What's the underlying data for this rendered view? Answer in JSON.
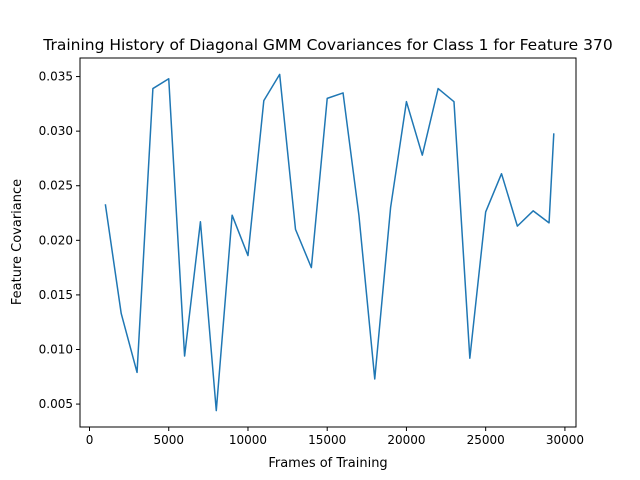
{
  "chart_data": {
    "type": "line",
    "title": "Training History of Diagonal GMM Covariances for Class 1 for Feature 370",
    "xlabel": "Frames of Training",
    "ylabel": "Feature Covariance",
    "xlim": [
      -600,
      30700
    ],
    "ylim": [
      0.0029,
      0.0367
    ],
    "xticks": [
      0,
      5000,
      10000,
      15000,
      20000,
      25000,
      30000
    ],
    "xtick_labels": [
      "0",
      "5000",
      "10000",
      "15000",
      "20000",
      "25000",
      "30000"
    ],
    "yticks": [
      0.005,
      0.01,
      0.015,
      0.02,
      0.025,
      0.03,
      0.035
    ],
    "ytick_labels": [
      "0.005",
      "0.010",
      "0.015",
      "0.020",
      "0.025",
      "0.030",
      "0.035"
    ],
    "grid": false,
    "legend": "none",
    "series": [
      {
        "color": "#1f77b4",
        "x": [
          1000,
          2000,
          3000,
          4000,
          5000,
          6000,
          7000,
          8000,
          9000,
          10000,
          11000,
          12000,
          13000,
          14000,
          15000,
          16000,
          17000,
          18000,
          19000,
          20000,
          21000,
          22000,
          23000,
          24000,
          25000,
          26000,
          27000,
          28000,
          29000,
          29300
        ],
        "values": [
          0.0233,
          0.0133,
          0.0079,
          0.0339,
          0.0348,
          0.0094,
          0.0217,
          0.0044,
          0.0223,
          0.0186,
          0.0328,
          0.0352,
          0.021,
          0.0175,
          0.033,
          0.0335,
          0.0223,
          0.0073,
          0.023,
          0.0327,
          0.0278,
          0.0339,
          0.0327,
          0.0092,
          0.0226,
          0.0261,
          0.0213,
          0.0227,
          0.0216,
          0.0298
        ]
      }
    ]
  }
}
